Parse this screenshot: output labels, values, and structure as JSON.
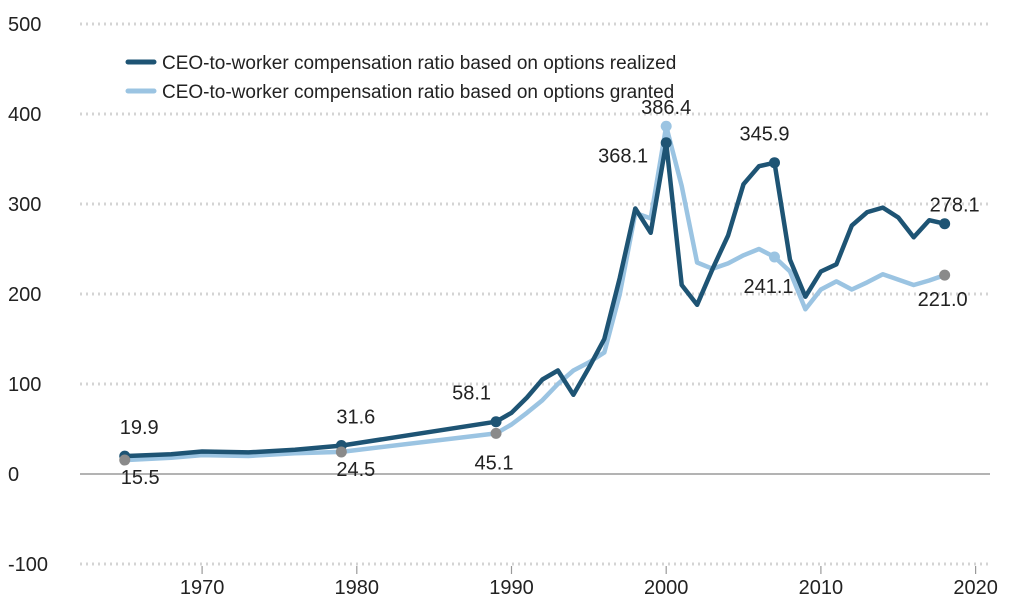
{
  "chart_data": {
    "type": "line",
    "title": "",
    "xlabel": "",
    "ylabel": "",
    "xlim": [
      1961,
      2022
    ],
    "ylim": [
      -100,
      500
    ],
    "x_ticks": [
      1970,
      1980,
      1990,
      2000,
      2010,
      2020
    ],
    "y_ticks": [
      -100,
      0,
      100,
      200,
      300,
      400,
      500
    ],
    "grid": "horizontal dotted",
    "legend_position": "top-left",
    "series": [
      {
        "name": "CEO-to-worker compensation ratio based on options realized",
        "color": "#1e5474",
        "points": [
          [
            1965,
            19.9
          ],
          [
            1968,
            22
          ],
          [
            1970,
            25
          ],
          [
            1973,
            24
          ],
          [
            1976,
            27
          ],
          [
            1979,
            31.6
          ],
          [
            1989,
            58.1
          ],
          [
            1990,
            68
          ],
          [
            1991,
            85
          ],
          [
            1992,
            105
          ],
          [
            1993,
            115
          ],
          [
            1994,
            88
          ],
          [
            1995,
            118
          ],
          [
            1996,
            150
          ],
          [
            1997,
            218
          ],
          [
            1998,
            295
          ],
          [
            1999,
            268
          ],
          [
            2000,
            368.1
          ],
          [
            2001,
            210
          ],
          [
            2002,
            188
          ],
          [
            2003,
            228
          ],
          [
            2004,
            265
          ],
          [
            2005,
            322
          ],
          [
            2006,
            342
          ],
          [
            2007,
            345.9
          ],
          [
            2008,
            238
          ],
          [
            2009,
            197
          ],
          [
            2010,
            225
          ],
          [
            2011,
            233
          ],
          [
            2012,
            276
          ],
          [
            2013,
            291
          ],
          [
            2014,
            296
          ],
          [
            2015,
            285
          ],
          [
            2016,
            263
          ],
          [
            2017,
            282
          ],
          [
            2018,
            278.1
          ]
        ],
        "labels": [
          {
            "x": 1965,
            "y": 19.9,
            "text": "19.9"
          },
          {
            "x": 1979,
            "y": 31.6,
            "text": "31.6"
          },
          {
            "x": 1989,
            "y": 58.1,
            "text": "58.1"
          },
          {
            "x": 2000,
            "y": 368.1,
            "text": "368.1"
          },
          {
            "x": 2007,
            "y": 345.9,
            "text": "345.9"
          },
          {
            "x": 2018,
            "y": 278.1,
            "text": "278.1"
          }
        ]
      },
      {
        "name": "CEO-to-worker compensation ratio based on options granted",
        "color": "#9bc4e2",
        "points": [
          [
            1965,
            15.5
          ],
          [
            1968,
            18
          ],
          [
            1970,
            21
          ],
          [
            1973,
            20
          ],
          [
            1976,
            23
          ],
          [
            1979,
            24.5
          ],
          [
            1989,
            45.1
          ],
          [
            1990,
            55
          ],
          [
            1991,
            68
          ],
          [
            1992,
            82
          ],
          [
            1993,
            100
          ],
          [
            1994,
            115
          ],
          [
            1995,
            124
          ],
          [
            1996,
            135
          ],
          [
            1997,
            200
          ],
          [
            1998,
            290
          ],
          [
            1999,
            284
          ],
          [
            2000,
            386.4
          ],
          [
            2001,
            320
          ],
          [
            2002,
            235
          ],
          [
            2003,
            228
          ],
          [
            2004,
            234
          ],
          [
            2005,
            243
          ],
          [
            2006,
            250
          ],
          [
            2007,
            241.1
          ],
          [
            2008,
            225
          ],
          [
            2009,
            183
          ],
          [
            2010,
            205
          ],
          [
            2011,
            214
          ],
          [
            2012,
            205
          ],
          [
            2013,
            213
          ],
          [
            2014,
            222
          ],
          [
            2015,
            216
          ],
          [
            2016,
            210
          ],
          [
            2017,
            215
          ],
          [
            2018,
            221.0
          ]
        ],
        "labels": [
          {
            "x": 1965,
            "y": 15.5,
            "text": "15.5"
          },
          {
            "x": 1979,
            "y": 24.5,
            "text": "24.5"
          },
          {
            "x": 1989,
            "y": 45.1,
            "text": "45.1"
          },
          {
            "x": 2000,
            "y": 386.4,
            "text": "386.4"
          },
          {
            "x": 2007,
            "y": 241.1,
            "text": "241.1"
          },
          {
            "x": 2018,
            "y": 221.0,
            "text": "221.0"
          }
        ]
      }
    ],
    "marker_color_granted": "#8a8a8a"
  }
}
